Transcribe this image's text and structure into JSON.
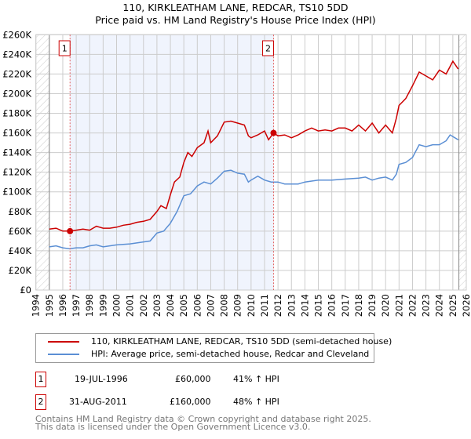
{
  "chart_data": {
    "type": "line",
    "title": "110, KIRKLEATHAM LANE, REDCAR, TS10 5DD",
    "subtitle": "Price paid vs. HM Land Registry's House Price Index (HPI)",
    "xlim": [
      1994,
      2026
    ],
    "ylim": [
      0,
      260000
    ],
    "x_ticks": [
      "1994",
      "1995",
      "1996",
      "1997",
      "1998",
      "1999",
      "2000",
      "2001",
      "2002",
      "2003",
      "2004",
      "2005",
      "2006",
      "2007",
      "2008",
      "2009",
      "2010",
      "2011",
      "2012",
      "2013",
      "2014",
      "2015",
      "2016",
      "2017",
      "2018",
      "2019",
      "2020",
      "2021",
      "2022",
      "2023",
      "2024",
      "2025",
      "2026"
    ],
    "y_ticks": [
      {
        "v": 0,
        "label": "£0"
      },
      {
        "v": 20000,
        "label": "£20K"
      },
      {
        "v": 40000,
        "label": "£40K"
      },
      {
        "v": 60000,
        "label": "£60K"
      },
      {
        "v": 80000,
        "label": "£80K"
      },
      {
        "v": 100000,
        "label": "£100K"
      },
      {
        "v": 120000,
        "label": "£120K"
      },
      {
        "v": 140000,
        "label": "£140K"
      },
      {
        "v": 160000,
        "label": "£160K"
      },
      {
        "v": 180000,
        "label": "£180K"
      },
      {
        "v": 200000,
        "label": "£200K"
      },
      {
        "v": 220000,
        "label": "£220K"
      },
      {
        "v": 240000,
        "label": "£240K"
      },
      {
        "v": 260000,
        "label": "£260K"
      }
    ],
    "grid": true,
    "hatched_ranges": [
      [
        1994,
        1995
      ],
      [
        2025.45,
        2026
      ]
    ],
    "shaded_range": [
      1996.54,
      2011.67
    ],
    "series": [
      {
        "name": "110, KIRKLEATHAM LANE, REDCAR, TS10 5DD (semi-detached house)",
        "color": "#cc0000",
        "x": [
          1995,
          1995.5,
          1996,
          1996.54,
          1997,
          1997.5,
          1998,
          1998.5,
          1999,
          1999.5,
          2000,
          2000.5,
          2001,
          2001.5,
          2002,
          2002.5,
          2003,
          2003.3,
          2003.7,
          2004,
          2004.3,
          2004.7,
          2005,
          2005.3,
          2005.6,
          2006,
          2006.5,
          2006.8,
          2007,
          2007.5,
          2008,
          2008.5,
          2009,
          2009.5,
          2009.8,
          2010,
          2010.5,
          2011,
          2011.3,
          2011.67,
          2012,
          2012.5,
          2013,
          2013.5,
          2014,
          2014.5,
          2015,
          2015.5,
          2016,
          2016.5,
          2017,
          2017.5,
          2018,
          2018.5,
          2019,
          2019.5,
          2020,
          2020.5,
          2020.8,
          2021,
          2021.5,
          2022,
          2022.5,
          2023,
          2023.5,
          2024,
          2024.5,
          2025,
          2025.4
        ],
        "y": [
          62000,
          63000,
          60000,
          60000,
          61000,
          62000,
          61000,
          65000,
          63000,
          63000,
          64000,
          66000,
          67000,
          69000,
          70000,
          72000,
          80000,
          86000,
          83000,
          97000,
          110000,
          115000,
          130000,
          140000,
          136000,
          145000,
          150000,
          162000,
          150000,
          157000,
          171000,
          172000,
          170000,
          168000,
          157000,
          155000,
          158000,
          162000,
          153000,
          160000,
          157000,
          158000,
          155000,
          158000,
          162000,
          165000,
          162000,
          163000,
          162000,
          165000,
          165000,
          162000,
          168000,
          162000,
          170000,
          160000,
          168000,
          160000,
          175000,
          188000,
          195000,
          208000,
          222000,
          218000,
          214000,
          224000,
          220000,
          233000,
          225000
        ]
      },
      {
        "name": "HPI: Average price, semi-detached house, Redcar and Cleveland",
        "color": "#5b8fd4",
        "x": [
          1995,
          1995.5,
          1996,
          1996.5,
          1997,
          1997.5,
          1998,
          1998.5,
          1999,
          2000,
          2001,
          2002,
          2002.5,
          2003,
          2003.5,
          2004,
          2004.5,
          2005,
          2005.5,
          2006,
          2006.5,
          2007,
          2007.5,
          2008,
          2008.5,
          2009,
          2009.5,
          2009.8,
          2010,
          2010.5,
          2011,
          2011.5,
          2012,
          2012.5,
          2013,
          2013.5,
          2014,
          2015,
          2016,
          2017,
          2018,
          2018.5,
          2019,
          2019.5,
          2020,
          2020.5,
          2020.8,
          2021,
          2021.5,
          2022,
          2022.5,
          2023,
          2023.5,
          2024,
          2024.5,
          2024.8,
          2025.4
        ],
        "y": [
          44000,
          45000,
          43000,
          42000,
          43000,
          43000,
          45000,
          46000,
          44000,
          46000,
          47000,
          49000,
          50000,
          58000,
          60000,
          68000,
          80000,
          96000,
          98000,
          106000,
          110000,
          108000,
          114000,
          121000,
          122000,
          119000,
          118000,
          110000,
          112000,
          116000,
          112000,
          110000,
          110000,
          108000,
          108000,
          108000,
          110000,
          112000,
          112000,
          113000,
          114000,
          115000,
          112000,
          114000,
          115000,
          112000,
          118000,
          128000,
          130000,
          135000,
          148000,
          146000,
          148000,
          148000,
          152000,
          158000,
          153000
        ]
      }
    ],
    "annotations": [
      {
        "label": "1",
        "x": 1996.54,
        "y": 60000
      },
      {
        "label": "2",
        "x": 2011.67,
        "y": 160000
      }
    ],
    "legend_position": "below"
  },
  "legend": {
    "items": [
      "110, KIRKLEATHAM LANE, REDCAR, TS10 5DD (semi-detached house)",
      "HPI: Average price, semi-detached house, Redcar and Cleveland"
    ]
  },
  "sales": [
    {
      "num": "1",
      "date": "19-JUL-1996",
      "price": "£60,000",
      "hpi": "41% ↑ HPI"
    },
    {
      "num": "2",
      "date": "31-AUG-2011",
      "price": "£160,000",
      "hpi": "48% ↑ HPI"
    }
  ],
  "footer": {
    "line1": "Contains HM Land Registry data © Crown copyright and database right 2025.",
    "line2": "This data is licensed under the Open Government Licence v3.0."
  }
}
